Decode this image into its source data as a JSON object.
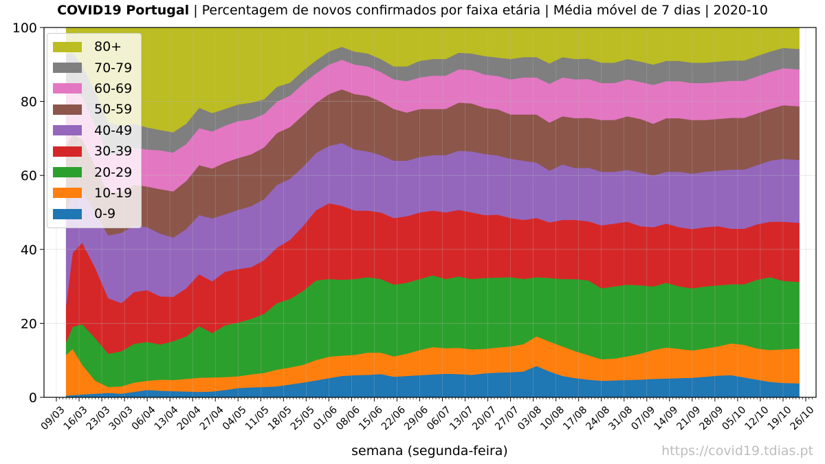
{
  "title": {
    "bold": "COVID19 Portugal",
    "rest": " | Percentagem de novos confirmados por faixa etária | Média móvel de 7 dias | 2020-10"
  },
  "xlabel": "semana (segunda-feira)",
  "watermark": "https://covid19.tdias.pt",
  "chart_data": {
    "type": "area",
    "stacked": true,
    "normalized_percent": true,
    "ylim": [
      0,
      100
    ],
    "y_ticks": [
      0,
      20,
      40,
      60,
      80,
      100
    ],
    "grid": true,
    "legend_position": "top-left",
    "x_start": "2020-03-09",
    "x_end": "2020-10-26",
    "x_tick_labels": [
      "09/03",
      "16/03",
      "23/03",
      "30/03",
      "06/04",
      "13/04",
      "20/04",
      "27/04",
      "04/05",
      "11/05",
      "18/05",
      "25/05",
      "01/06",
      "08/06",
      "15/06",
      "22/06",
      "29/06",
      "06/07",
      "13/07",
      "20/07",
      "27/07",
      "03/08",
      "10/08",
      "17/08",
      "24/08",
      "31/08",
      "07/09",
      "14/09",
      "21/09",
      "28/09",
      "05/10",
      "12/10",
      "19/10",
      "26/10"
    ],
    "data_start": "2020-03-12",
    "data_end": "2020-10-24",
    "x": [
      "2020-03-12",
      "2020-03-14",
      "2020-03-17",
      "2020-03-21",
      "2020-03-25",
      "2020-03-29",
      "2020-04-02",
      "2020-04-06",
      "2020-04-10",
      "2020-04-14",
      "2020-04-18",
      "2020-04-22",
      "2020-04-26",
      "2020-04-30",
      "2020-05-04",
      "2020-05-08",
      "2020-05-12",
      "2020-05-16",
      "2020-05-20",
      "2020-05-24",
      "2020-05-28",
      "2020-06-01",
      "2020-06-05",
      "2020-06-09",
      "2020-06-13",
      "2020-06-17",
      "2020-06-21",
      "2020-06-25",
      "2020-06-29",
      "2020-07-03",
      "2020-07-07",
      "2020-07-11",
      "2020-07-15",
      "2020-07-19",
      "2020-07-23",
      "2020-07-27",
      "2020-07-31",
      "2020-08-04",
      "2020-08-08",
      "2020-08-12",
      "2020-08-16",
      "2020-08-20",
      "2020-08-24",
      "2020-08-28",
      "2020-09-01",
      "2020-09-05",
      "2020-09-09",
      "2020-09-13",
      "2020-09-17",
      "2020-09-21",
      "2020-09-25",
      "2020-09-29",
      "2020-10-03",
      "2020-10-07",
      "2020-10-11",
      "2020-10-15",
      "2020-10-19",
      "2020-10-24"
    ],
    "series": [
      {
        "name": "0-9",
        "color": "#1f77b4",
        "values": [
          0.5,
          0.6,
          0.8,
          1.0,
          1.2,
          1.0,
          1.5,
          2.0,
          1.8,
          1.7,
          1.6,
          1.5,
          1.6,
          2.0,
          2.5,
          2.7,
          2.8,
          3.0,
          3.5,
          4.0,
          4.6,
          5.2,
          5.8,
          6.0,
          6.1,
          6.3,
          5.6,
          5.8,
          6.0,
          6.2,
          6.4,
          6.3,
          6.1,
          6.5,
          6.7,
          6.8,
          7.0,
          8.5,
          7.0,
          5.8,
          5.2,
          4.8,
          4.5,
          4.6,
          4.7,
          4.8,
          5.0,
          5.1,
          5.2,
          5.3,
          5.6,
          5.9,
          6.0,
          5.4,
          4.8,
          4.2,
          3.9,
          3.8
        ]
      },
      {
        "name": "10-19",
        "color": "#ff7f0e",
        "values": [
          11.0,
          12.5,
          8.0,
          3.5,
          1.6,
          2.0,
          2.5,
          2.5,
          3.0,
          3.0,
          3.4,
          3.8,
          3.8,
          3.5,
          3.2,
          3.5,
          3.8,
          4.5,
          4.6,
          4.8,
          5.5,
          5.8,
          5.5,
          5.5,
          6.0,
          5.8,
          5.5,
          6.0,
          6.8,
          7.4,
          6.9,
          7.1,
          6.9,
          6.6,
          6.8,
          7.0,
          7.4,
          8.0,
          8.1,
          8.0,
          7.3,
          6.6,
          5.8,
          5.9,
          6.4,
          7.0,
          7.8,
          8.4,
          7.9,
          7.4,
          7.6,
          7.9,
          8.6,
          8.8,
          8.4,
          8.6,
          9.1,
          9.4
        ]
      },
      {
        "name": "20-29",
        "color": "#2ca02c",
        "values": [
          3.5,
          6.0,
          11.0,
          11.5,
          9.0,
          9.5,
          10.5,
          10.5,
          9.5,
          10.5,
          11.5,
          14.0,
          12.0,
          14.0,
          14.5,
          15.0,
          16.0,
          18.0,
          18.5,
          20.0,
          21.5,
          21.0,
          20.5,
          20.5,
          20.4,
          19.9,
          19.4,
          19.2,
          19.2,
          19.4,
          18.7,
          19.3,
          19.0,
          19.2,
          18.9,
          18.7,
          17.6,
          16.0,
          17.2,
          18.2,
          19.5,
          20.2,
          19.2,
          19.5,
          19.4,
          18.5,
          17.2,
          17.5,
          16.9,
          16.8,
          16.8,
          16.5,
          16.0,
          16.4,
          18.6,
          19.7,
          18.5,
          18.0
        ]
      },
      {
        "name": "30-39",
        "color": "#d62728",
        "values": [
          10.0,
          20.0,
          22.0,
          19.0,
          15.0,
          13.0,
          14.0,
          14.0,
          13.0,
          12.0,
          13.0,
          14.0,
          14.0,
          14.5,
          14.5,
          14.0,
          14.5,
          15.0,
          16.0,
          17.5,
          19.0,
          20.5,
          20.0,
          18.5,
          18.0,
          18.0,
          18.0,
          18.0,
          18.0,
          17.5,
          18.0,
          18.0,
          18.0,
          17.0,
          17.0,
          16.0,
          16.0,
          16.0,
          15.0,
          16.0,
          16.0,
          16.0,
          17.0,
          17.0,
          17.0,
          16.0,
          16.0,
          16.0,
          16.0,
          16.0,
          16.0,
          16.0,
          15.0,
          15.0,
          15.0,
          15.0,
          16.0,
          16.0
        ]
      },
      {
        "name": "40-49",
        "color": "#9467bd",
        "values": [
          25.0,
          16.0,
          14.0,
          15.0,
          17.0,
          19.0,
          18.0,
          17.0,
          17.0,
          16.0,
          16.0,
          16.0,
          17.0,
          15.5,
          16.0,
          16.5,
          16.5,
          17.0,
          16.5,
          16.0,
          15.5,
          15.5,
          17.0,
          16.5,
          16.0,
          15.5,
          15.5,
          15.0,
          15.0,
          15.0,
          15.5,
          16.0,
          16.5,
          16.5,
          16.0,
          16.0,
          16.0,
          15.0,
          14.0,
          15.0,
          14.0,
          14.5,
          14.5,
          14.0,
          14.0,
          14.5,
          14.0,
          14.0,
          15.0,
          15.0,
          15.0,
          15.0,
          16.0,
          16.0,
          16.0,
          16.5,
          17.0,
          17.0
        ]
      },
      {
        "name": "50-59",
        "color": "#8c564b",
        "values": [
          18.0,
          16.0,
          14.0,
          12.5,
          11.5,
          11.0,
          11.0,
          11.0,
          12.0,
          12.5,
          13.0,
          13.5,
          13.5,
          14.0,
          14.0,
          14.0,
          14.0,
          14.0,
          14.0,
          14.0,
          13.5,
          14.0,
          14.5,
          15.0,
          15.0,
          14.5,
          14.0,
          13.0,
          13.0,
          12.5,
          12.5,
          13.0,
          13.0,
          12.5,
          12.5,
          12.0,
          12.5,
          13.0,
          13.0,
          13.0,
          13.5,
          13.5,
          14.0,
          14.0,
          14.5,
          14.5,
          14.0,
          14.5,
          14.5,
          14.5,
          14.0,
          14.0,
          14.0,
          14.0,
          14.0,
          14.0,
          14.5,
          14.5
        ]
      },
      {
        "name": "60-69",
        "color": "#e377c2",
        "values": [
          15.0,
          12.0,
          11.5,
          11.0,
          10.5,
          10.5,
          10.0,
          10.0,
          10.5,
          10.5,
          10.0,
          10.0,
          10.0,
          10.0,
          10.0,
          9.5,
          9.0,
          8.5,
          8.5,
          8.5,
          8.0,
          8.0,
          8.0,
          8.0,
          8.0,
          8.0,
          8.0,
          8.5,
          8.5,
          9.0,
          9.0,
          9.0,
          9.0,
          9.0,
          9.0,
          9.5,
          10.0,
          10.0,
          10.5,
          10.5,
          10.5,
          10.5,
          10.0,
          10.0,
          10.0,
          10.0,
          10.5,
          10.0,
          10.0,
          10.0,
          10.0,
          10.0,
          10.0,
          10.0,
          10.0,
          10.0,
          10.0,
          10.0
        ]
      },
      {
        "name": "70-79",
        "color": "#7f7f7f",
        "values": [
          10.0,
          10.0,
          8.5,
          9.0,
          8.5,
          7.5,
          6.5,
          6.0,
          5.5,
          5.5,
          5.5,
          5.5,
          5.0,
          4.5,
          4.5,
          4.5,
          4.0,
          4.0,
          3.5,
          3.5,
          3.5,
          3.5,
          3.5,
          3.5,
          3.5,
          3.5,
          3.5,
          4.0,
          4.5,
          4.5,
          4.5,
          4.5,
          4.5,
          5.0,
          5.0,
          5.5,
          5.5,
          5.5,
          5.5,
          5.5,
          5.5,
          5.5,
          5.5,
          5.5,
          5.5,
          5.5,
          5.5,
          5.5,
          5.5,
          5.5,
          5.5,
          5.5,
          5.5,
          5.5,
          5.5,
          5.5,
          5.5,
          5.5
        ]
      },
      {
        "name": "80+",
        "color": "#bcbd22",
        "values": [
          7.0,
          6.9,
          10.2,
          17.5,
          25.7,
          26.5,
          26.0,
          27.0,
          27.7,
          28.3,
          26.0,
          21.7,
          23.1,
          22.0,
          20.8,
          20.3,
          19.4,
          16.0,
          14.9,
          11.7,
          8.9,
          6.5,
          5.2,
          6.5,
          7.0,
          8.5,
          10.5,
          10.5,
          9.0,
          8.5,
          8.5,
          6.8,
          7.0,
          7.7,
          8.1,
          8.5,
          8.0,
          8.0,
          8.7,
          8.0,
          8.5,
          7.9,
          9.5,
          9.5,
          8.5,
          9.2,
          10.0,
          9.0,
          9.0,
          9.5,
          9.5,
          9.2,
          8.9,
          9.5,
          7.7,
          7.0,
          5.5,
          5.8
        ]
      }
    ]
  }
}
